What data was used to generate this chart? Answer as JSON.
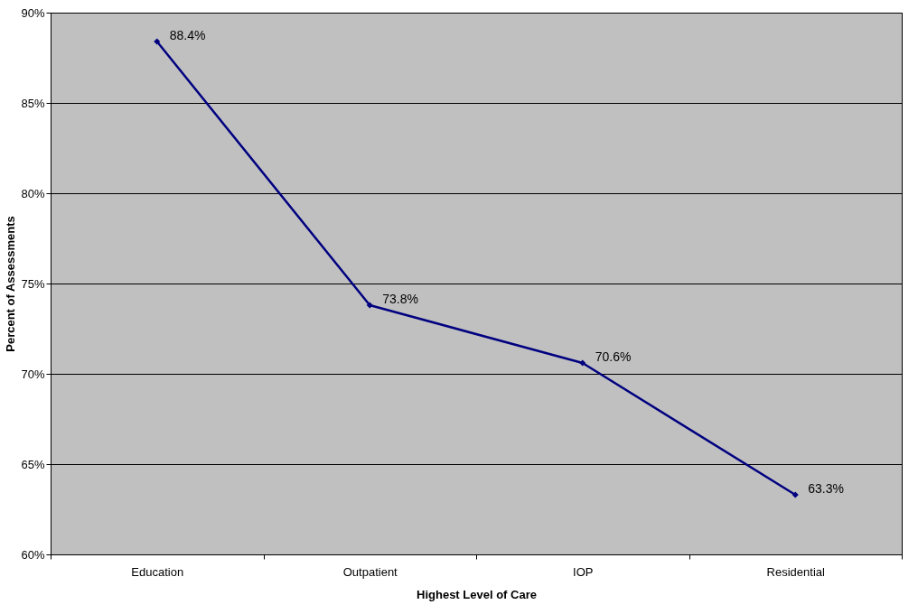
{
  "chart_data": {
    "type": "line",
    "xlabel": "Highest Level of Care",
    "ylabel": "Percent of Assessments",
    "categories": [
      "Education",
      "Outpatient",
      "IOP",
      "Residential"
    ],
    "series": [
      {
        "color": "#000080",
        "values": [
          88.4,
          73.8,
          70.6,
          63.3
        ],
        "value_labels": [
          "88.4%",
          "73.8%",
          "70.6%",
          "63.3%"
        ]
      }
    ],
    "ylim": [
      60,
      90
    ],
    "yticks": [
      {
        "value": 60,
        "label": "60%"
      },
      {
        "value": 65,
        "label": "65%"
      },
      {
        "value": 70,
        "label": "70%"
      },
      {
        "value": 75,
        "label": "75%"
      },
      {
        "value": 80,
        "label": "80%"
      },
      {
        "value": 85,
        "label": "85%"
      },
      {
        "value": 90,
        "label": "90%"
      }
    ],
    "grid": "y",
    "marker": "diamond",
    "line_style": "solid"
  }
}
